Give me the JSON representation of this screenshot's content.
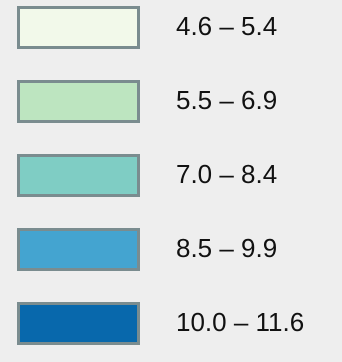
{
  "legend": {
    "items": [
      {
        "label": "4.6 – 5.4",
        "color": "#f2f9ea"
      },
      {
        "label": "5.5 – 6.9",
        "color": "#bde5c0"
      },
      {
        "label": "7.0 – 8.4",
        "color": "#7fcdc4"
      },
      {
        "label": "8.5 – 9.9",
        "color": "#44a4d0"
      },
      {
        "label": "10.0 – 11.6",
        "color": "#0868ac"
      }
    ]
  }
}
